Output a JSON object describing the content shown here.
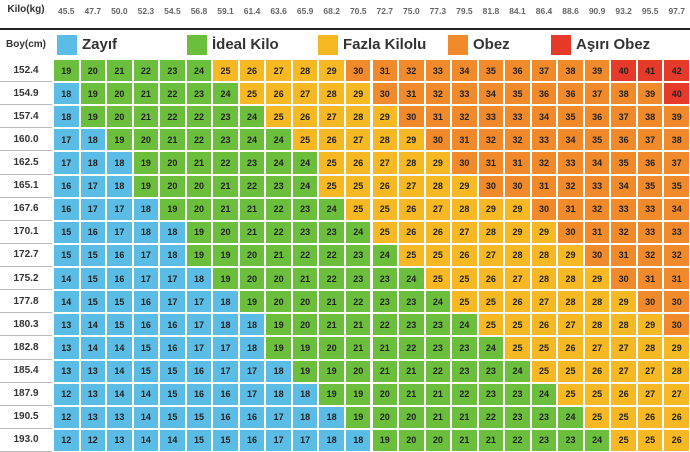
{
  "header": {
    "title": "Kilo(kg)",
    "weights": [
      "45.5",
      "47.7",
      "50.0",
      "52.3",
      "54.5",
      "56.8",
      "59.1",
      "61.4",
      "63.6",
      "65.9",
      "68.2",
      "70.5",
      "72.7",
      "75.0",
      "77.3",
      "79.5",
      "81.8",
      "84.1",
      "86.4",
      "88.6",
      "90.9",
      "93.2",
      "95.5",
      "97.7"
    ]
  },
  "table": {
    "row_header": "Boy(cm)",
    "rows": [
      {
        "height": "152.4",
        "values": [
          19,
          20,
          21,
          22,
          23,
          24,
          25,
          26,
          27,
          28,
          29,
          30,
          31,
          32,
          33,
          34,
          35,
          36,
          37,
          38,
          39,
          40,
          41,
          42
        ]
      },
      {
        "height": "154.9",
        "values": [
          18,
          19,
          20,
          21,
          22,
          23,
          24,
          25,
          26,
          27,
          28,
          29,
          30,
          31,
          32,
          33,
          34,
          35,
          36,
          36,
          37,
          38,
          39,
          40
        ]
      },
      {
        "height": "157.4",
        "values": [
          18,
          19,
          20,
          21,
          22,
          22,
          23,
          24,
          25,
          26,
          27,
          28,
          29,
          30,
          31,
          32,
          33,
          33,
          34,
          35,
          36,
          37,
          38,
          39
        ]
      },
      {
        "height": "160.0",
        "values": [
          17,
          18,
          19,
          20,
          21,
          22,
          23,
          24,
          24,
          25,
          26,
          27,
          28,
          29,
          30,
          31,
          32,
          32,
          33,
          34,
          35,
          36,
          37,
          38
        ]
      },
      {
        "height": "162.5",
        "values": [
          17,
          18,
          18,
          19,
          20,
          21,
          22,
          23,
          24,
          24,
          25,
          26,
          27,
          28,
          29,
          30,
          31,
          31,
          32,
          33,
          34,
          35,
          36,
          37
        ]
      },
      {
        "height": "165.1",
        "values": [
          16,
          17,
          18,
          19,
          20,
          20,
          21,
          22,
          23,
          24,
          25,
          25,
          26,
          27,
          28,
          29,
          30,
          30,
          31,
          32,
          33,
          34,
          35,
          35
        ]
      },
      {
        "height": "167.6",
        "values": [
          16,
          17,
          17,
          18,
          19,
          20,
          21,
          21,
          22,
          23,
          24,
          25,
          25,
          26,
          27,
          28,
          29,
          29,
          30,
          31,
          32,
          33,
          33,
          34
        ]
      },
      {
        "height": "170.1",
        "values": [
          15,
          16,
          17,
          18,
          18,
          19,
          20,
          21,
          22,
          23,
          23,
          24,
          25,
          26,
          26,
          27,
          28,
          29,
          29,
          30,
          31,
          32,
          33,
          33
        ]
      },
      {
        "height": "172.7",
        "values": [
          15,
          15,
          16,
          17,
          18,
          19,
          19,
          20,
          21,
          22,
          22,
          23,
          24,
          25,
          25,
          26,
          27,
          28,
          28,
          29,
          30,
          31,
          32,
          32
        ]
      },
      {
        "height": "175.2",
        "values": [
          14,
          15,
          16,
          17,
          17,
          18,
          19,
          20,
          20,
          21,
          22,
          23,
          23,
          24,
          25,
          25,
          26,
          27,
          28,
          28,
          29,
          30,
          31,
          31
        ]
      },
      {
        "height": "177.8",
        "values": [
          14,
          15,
          15,
          16,
          17,
          17,
          18,
          19,
          20,
          20,
          21,
          22,
          23,
          23,
          24,
          25,
          25,
          26,
          27,
          28,
          28,
          29,
          30,
          30
        ]
      },
      {
        "height": "180.3",
        "values": [
          13,
          14,
          15,
          16,
          16,
          17,
          18,
          18,
          19,
          20,
          21,
          21,
          22,
          23,
          23,
          24,
          25,
          25,
          26,
          27,
          28,
          28,
          29,
          30
        ]
      },
      {
        "height": "182.8",
        "values": [
          13,
          14,
          14,
          15,
          16,
          17,
          17,
          18,
          19,
          19,
          20,
          21,
          21,
          22,
          23,
          23,
          24,
          25,
          25,
          26,
          27,
          27,
          28,
          29
        ]
      },
      {
        "height": "185.4",
        "values": [
          13,
          13,
          14,
          15,
          15,
          16,
          17,
          17,
          18,
          19,
          19,
          20,
          21,
          21,
          22,
          23,
          23,
          24,
          25,
          25,
          26,
          27,
          27,
          28
        ]
      },
      {
        "height": "187.9",
        "values": [
          12,
          13,
          14,
          14,
          15,
          16,
          16,
          17,
          18,
          18,
          19,
          19,
          20,
          21,
          21,
          22,
          23,
          23,
          24,
          25,
          25,
          26,
          27,
          27
        ]
      },
      {
        "height": "190.5",
        "values": [
          12,
          13,
          13,
          14,
          15,
          15,
          16,
          16,
          17,
          18,
          18,
          19,
          20,
          20,
          21,
          21,
          22,
          23,
          23,
          24,
          25,
          25,
          26,
          26
        ]
      },
      {
        "height": "193.0",
        "values": [
          12,
          12,
          13,
          14,
          14,
          15,
          15,
          16,
          17,
          17,
          18,
          18,
          19,
          20,
          20,
          21,
          21,
          22,
          23,
          23,
          24,
          25,
          25,
          26
        ]
      }
    ]
  },
  "legend": [
    {
      "label": "Zayıf",
      "color": "#5bbde6"
    },
    {
      "label": "İdeal Kilo",
      "color": "#6cbf3c"
    },
    {
      "label": "Fazla Kilolu",
      "color": "#f6b823"
    },
    {
      "label": "Obez",
      "color": "#f08a2a"
    },
    {
      "label": "Aşırı Obez",
      "color": "#e63a2a"
    }
  ]
}
